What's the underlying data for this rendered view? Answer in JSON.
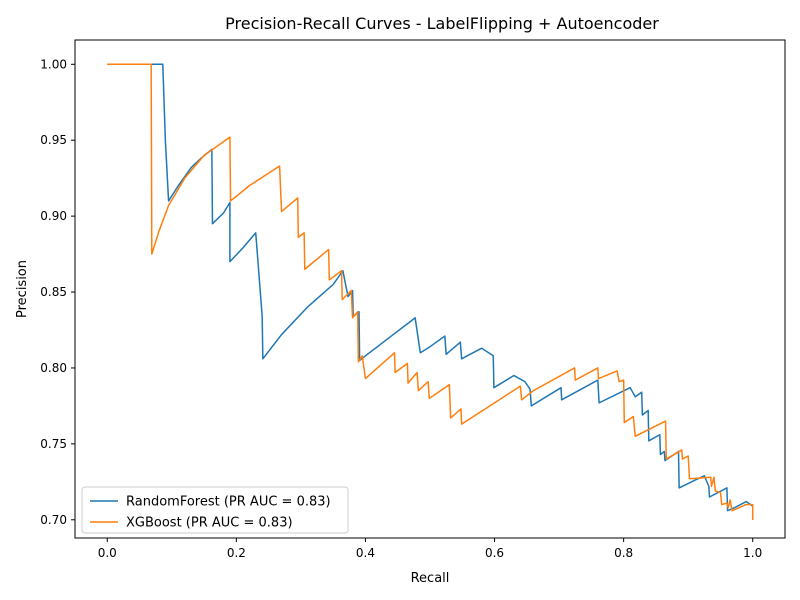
{
  "chart_data": {
    "type": "line",
    "title": "Precision-Recall Curves - LabelFlipping + Autoencoder",
    "xlabel": "Recall",
    "ylabel": "Precision",
    "xlim": [
      -0.05,
      1.05
    ],
    "ylim": [
      0.688,
      1.016
    ],
    "xticks": [
      0.0,
      0.2,
      0.4,
      0.6,
      0.8,
      1.0
    ],
    "xtick_labels": [
      "0.0",
      "0.2",
      "0.4",
      "0.6",
      "0.8",
      "1.0"
    ],
    "yticks": [
      0.7,
      0.75,
      0.8,
      0.85,
      0.9,
      0.95,
      1.0
    ],
    "ytick_labels": [
      "0.70",
      "0.75",
      "0.80",
      "0.85",
      "0.90",
      "0.95",
      "1.00"
    ],
    "grid": false,
    "legend_position": "lower-left",
    "series": [
      {
        "name": "RandomForest (PR AUC = 0.83)",
        "color": "#1f77b4",
        "points": [
          [
            0.0,
            1.0
          ],
          [
            0.086,
            1.0
          ],
          [
            0.09,
            0.95
          ],
          [
            0.095,
            0.91
          ],
          [
            0.11,
            0.92
          ],
          [
            0.13,
            0.932
          ],
          [
            0.145,
            0.938
          ],
          [
            0.162,
            0.944
          ],
          [
            0.163,
            0.895
          ],
          [
            0.18,
            0.902
          ],
          [
            0.19,
            0.909
          ],
          [
            0.19,
            0.87
          ],
          [
            0.21,
            0.879
          ],
          [
            0.23,
            0.889
          ],
          [
            0.24,
            0.834
          ],
          [
            0.241,
            0.806
          ],
          [
            0.27,
            0.822
          ],
          [
            0.31,
            0.84
          ],
          [
            0.35,
            0.855
          ],
          [
            0.365,
            0.864
          ],
          [
            0.373,
            0.847
          ],
          [
            0.38,
            0.851
          ],
          [
            0.381,
            0.834
          ],
          [
            0.39,
            0.837
          ],
          [
            0.391,
            0.805
          ],
          [
            0.4,
            0.808
          ],
          [
            0.44,
            0.821
          ],
          [
            0.477,
            0.833
          ],
          [
            0.485,
            0.81
          ],
          [
            0.5,
            0.814
          ],
          [
            0.523,
            0.821
          ],
          [
            0.525,
            0.809
          ],
          [
            0.547,
            0.817
          ],
          [
            0.549,
            0.806
          ],
          [
            0.58,
            0.813
          ],
          [
            0.598,
            0.808
          ],
          [
            0.599,
            0.787
          ],
          [
            0.63,
            0.795
          ],
          [
            0.647,
            0.791
          ],
          [
            0.655,
            0.786
          ],
          [
            0.657,
            0.775
          ],
          [
            0.703,
            0.787
          ],
          [
            0.704,
            0.779
          ],
          [
            0.76,
            0.792
          ],
          [
            0.762,
            0.777
          ],
          [
            0.81,
            0.787
          ],
          [
            0.818,
            0.781
          ],
          [
            0.828,
            0.784
          ],
          [
            0.829,
            0.769
          ],
          [
            0.838,
            0.772
          ],
          [
            0.839,
            0.752
          ],
          [
            0.856,
            0.756
          ],
          [
            0.857,
            0.743
          ],
          [
            0.863,
            0.745
          ],
          [
            0.864,
            0.739
          ],
          [
            0.885,
            0.745
          ],
          [
            0.886,
            0.721
          ],
          [
            0.91,
            0.726
          ],
          [
            0.925,
            0.729
          ],
          [
            0.932,
            0.722
          ],
          [
            0.933,
            0.715
          ],
          [
            0.96,
            0.721
          ],
          [
            0.961,
            0.706
          ],
          [
            0.972,
            0.708
          ],
          [
            0.99,
            0.712
          ],
          [
            1.0,
            0.709
          ],
          [
            1.0,
            0.7
          ]
        ]
      },
      {
        "name": "XGBoost (PR AUC = 0.83)",
        "color": "#ff7f0e",
        "points": [
          [
            0.0,
            1.0
          ],
          [
            0.068,
            1.0
          ],
          [
            0.069,
            0.875
          ],
          [
            0.08,
            0.89
          ],
          [
            0.095,
            0.907
          ],
          [
            0.12,
            0.925
          ],
          [
            0.15,
            0.94
          ],
          [
            0.19,
            0.952
          ],
          [
            0.191,
            0.91
          ],
          [
            0.22,
            0.92
          ],
          [
            0.267,
            0.933
          ],
          [
            0.27,
            0.903
          ],
          [
            0.295,
            0.912
          ],
          [
            0.296,
            0.886
          ],
          [
            0.305,
            0.889
          ],
          [
            0.306,
            0.865
          ],
          [
            0.343,
            0.878
          ],
          [
            0.344,
            0.858
          ],
          [
            0.363,
            0.864
          ],
          [
            0.364,
            0.845
          ],
          [
            0.378,
            0.851
          ],
          [
            0.38,
            0.833
          ],
          [
            0.388,
            0.837
          ],
          [
            0.389,
            0.804
          ],
          [
            0.395,
            0.808
          ],
          [
            0.4,
            0.793
          ],
          [
            0.445,
            0.81
          ],
          [
            0.446,
            0.797
          ],
          [
            0.465,
            0.803
          ],
          [
            0.466,
            0.79
          ],
          [
            0.48,
            0.797
          ],
          [
            0.482,
            0.785
          ],
          [
            0.497,
            0.791
          ],
          [
            0.499,
            0.78
          ],
          [
            0.53,
            0.789
          ],
          [
            0.532,
            0.767
          ],
          [
            0.548,
            0.773
          ],
          [
            0.549,
            0.763
          ],
          [
            0.64,
            0.788
          ],
          [
            0.642,
            0.779
          ],
          [
            0.66,
            0.785
          ],
          [
            0.724,
            0.8
          ],
          [
            0.725,
            0.792
          ],
          [
            0.76,
            0.8
          ],
          [
            0.761,
            0.793
          ],
          [
            0.79,
            0.798
          ],
          [
            0.793,
            0.791
          ],
          [
            0.8,
            0.792
          ],
          [
            0.801,
            0.764
          ],
          [
            0.815,
            0.768
          ],
          [
            0.818,
            0.755
          ],
          [
            0.865,
            0.765
          ],
          [
            0.866,
            0.74
          ],
          [
            0.89,
            0.746
          ],
          [
            0.891,
            0.74
          ],
          [
            0.9,
            0.742
          ],
          [
            0.902,
            0.727
          ],
          [
            0.935,
            0.728
          ],
          [
            0.936,
            0.722
          ],
          [
            0.94,
            0.728
          ],
          [
            0.942,
            0.719
          ],
          [
            0.95,
            0.718
          ],
          [
            0.952,
            0.71
          ],
          [
            0.96,
            0.711
          ],
          [
            0.962,
            0.708
          ],
          [
            0.965,
            0.713
          ],
          [
            0.968,
            0.706
          ],
          [
            0.99,
            0.71
          ],
          [
            1.0,
            0.71
          ],
          [
            1.0,
            0.7
          ]
        ]
      }
    ]
  }
}
